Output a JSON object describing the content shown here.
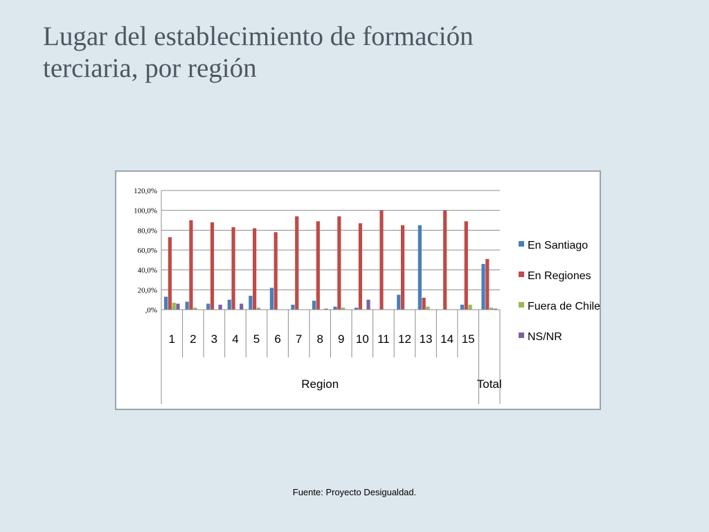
{
  "slide": {
    "title_line1": "Lugar del establecimiento de formación",
    "title_line2": "terciaria, por región",
    "source": "Fuente: Proyecto Desigualdad."
  },
  "chart_data": {
    "type": "bar",
    "categories": [
      "1",
      "2",
      "3",
      "4",
      "5",
      "6",
      "7",
      "8",
      "9",
      "10",
      "11",
      "12",
      "13",
      "14",
      "15",
      "Total"
    ],
    "group_labels": [
      {
        "label": "Region",
        "span": [
          0,
          14
        ]
      },
      {
        "label": "Total",
        "span": [
          15,
          15
        ]
      }
    ],
    "series": [
      {
        "name": "En Santiago",
        "color": "#4a7ebb",
        "values": [
          13,
          8,
          6,
          10,
          14,
          22,
          5,
          9,
          3,
          2,
          0,
          15,
          85,
          0,
          5,
          46
        ]
      },
      {
        "name": "En Regiones",
        "color": "#be4b48",
        "values": [
          73,
          90,
          88,
          83,
          82,
          78,
          94,
          89,
          94,
          87,
          100,
          85,
          12,
          100,
          89,
          51
        ]
      },
      {
        "name": "Fuera de Chile",
        "color": "#98b954",
        "values": [
          7,
          2,
          0,
          0,
          2,
          0,
          0,
          0,
          2,
          0,
          0,
          0,
          3,
          0,
          5,
          2
        ]
      },
      {
        "name": "NS/NR",
        "color": "#7d60a0",
        "values": [
          6,
          0,
          5,
          6,
          0,
          0,
          0,
          1,
          0,
          10,
          0,
          0,
          0,
          0,
          0,
          1
        ]
      }
    ],
    "yticks": [
      ",0%",
      "20,0%",
      "40,0%",
      "60,0%",
      "80,0%",
      "100,0%",
      "120,0%"
    ],
    "ylim": [
      0,
      120
    ],
    "grid": true,
    "legend_position": "right"
  }
}
